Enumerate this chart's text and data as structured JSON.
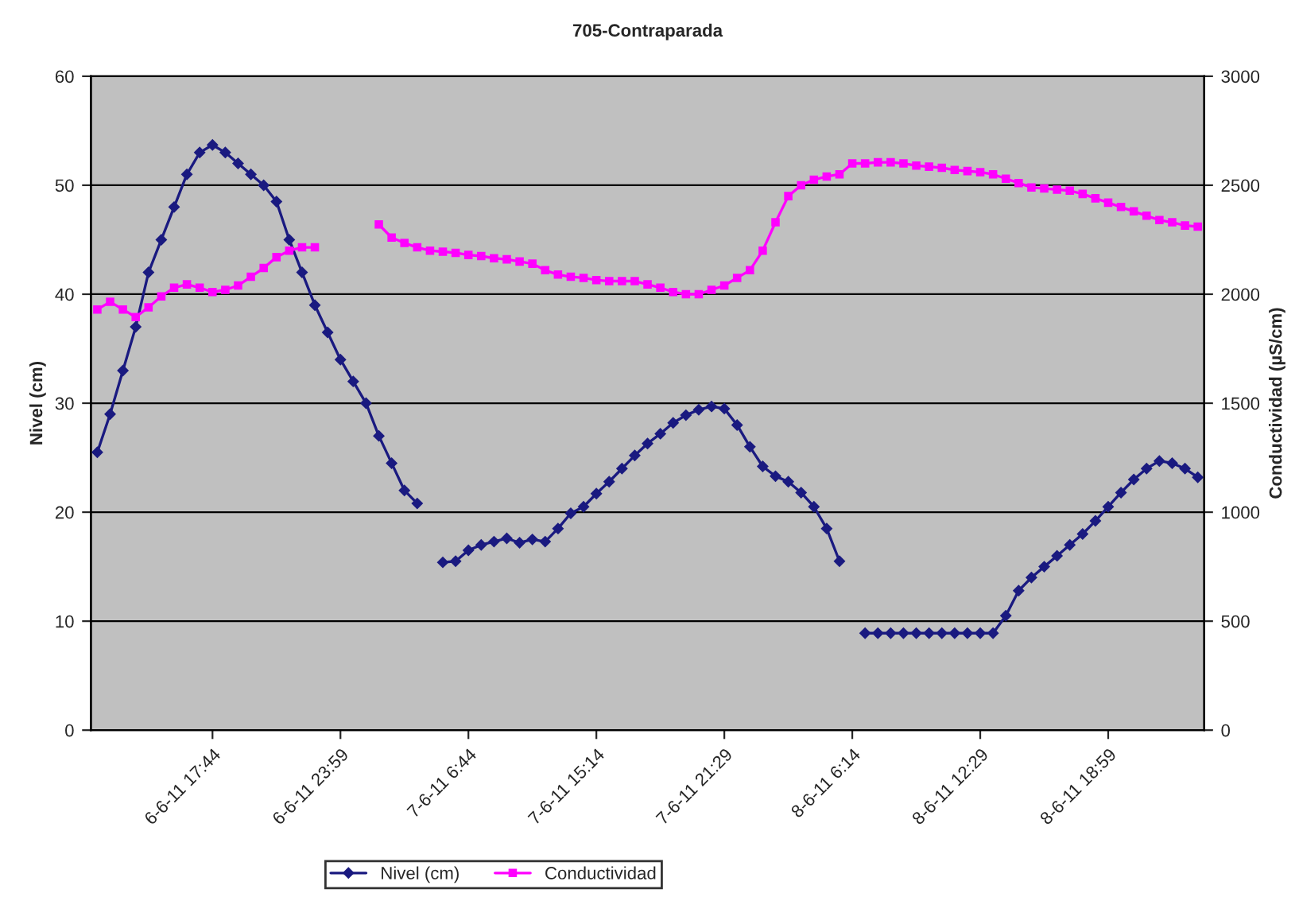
{
  "chart_data": {
    "type": "line",
    "title": "705-Contraparada",
    "ylabel": "Nivel (cm)",
    "y2label": "Conductividad (µS/cm)",
    "categories": [
      null,
      null,
      null,
      null,
      null,
      null,
      null,
      null,
      null,
      "6-6-11 17:44",
      null,
      null,
      null,
      null,
      null,
      null,
      null,
      null,
      null,
      "6-6-11 23:59",
      null,
      null,
      null,
      null,
      null,
      null,
      null,
      null,
      null,
      "7-6-11 6:44",
      null,
      null,
      null,
      null,
      null,
      null,
      null,
      null,
      null,
      "7-6-11 15:14",
      null,
      null,
      null,
      null,
      null,
      null,
      null,
      null,
      null,
      "7-6-11 21:29",
      null,
      null,
      null,
      null,
      null,
      null,
      null,
      null,
      null,
      "8-6-11 6:14",
      null,
      null,
      null,
      null,
      null,
      null,
      null,
      null,
      null,
      "8-6-11 12:29",
      null,
      null,
      null,
      null,
      null,
      null,
      null,
      null,
      null,
      "8-6-11 18:59",
      null,
      null,
      null,
      null,
      null,
      null,
      null
    ],
    "series": [
      {
        "name": "Nivel (cm)",
        "color": "#1a1a80",
        "marker": "diamond",
        "values": [
          25.5,
          29,
          33,
          37,
          42,
          45,
          48,
          51,
          53,
          53.7,
          53,
          52,
          51,
          50,
          48.5,
          45,
          42,
          39,
          36.5,
          34,
          32,
          30,
          27,
          24.5,
          22,
          20.8,
          null,
          15.4,
          15.5,
          16.5,
          17,
          17.3,
          17.6,
          17.2,
          17.5,
          17.3,
          18.5,
          19.9,
          20.5,
          21.7,
          22.8,
          24,
          25.2,
          26.3,
          27.2,
          28.2,
          28.9,
          29.4,
          29.7,
          29.5,
          28,
          26,
          24.2,
          23.3,
          22.8,
          21.8,
          20.5,
          18.5,
          15.5,
          null,
          8.9,
          8.9,
          8.9,
          8.9,
          8.9,
          8.9,
          8.9,
          8.9,
          8.9,
          8.9,
          8.9,
          10.5,
          12.8,
          14,
          15,
          16,
          17,
          18,
          19.2,
          20.5,
          21.8,
          23,
          24,
          24.7,
          24.5,
          24,
          23.2
        ]
      },
      {
        "name": "Conductividad",
        "color": "#ff00ff",
        "marker": "square",
        "axis": "y2",
        "values": [
          1930,
          1965,
          1930,
          1895,
          1940,
          1990,
          2030,
          2045,
          2030,
          2010,
          2020,
          2040,
          2080,
          2120,
          2170,
          2200,
          2215,
          2215,
          null,
          null,
          null,
          null,
          2320,
          2260,
          2235,
          2215,
          2200,
          2195,
          2190,
          2180,
          2175,
          2165,
          2160,
          2150,
          2140,
          2110,
          2090,
          2080,
          2075,
          2065,
          2060,
          2060,
          2060,
          2045,
          2030,
          2010,
          2000,
          2000,
          2020,
          2040,
          2075,
          2110,
          2200,
          2330,
          2450,
          2500,
          2525,
          2540,
          2550,
          2600,
          2600,
          2605,
          2605,
          2600,
          2590,
          2585,
          2580,
          2570,
          2565,
          2560,
          2550,
          2530,
          2510,
          2490,
          2485,
          2480,
          2475,
          2460,
          2440,
          2420,
          2400,
          2380,
          2360,
          2340,
          2330,
          2315,
          2310
        ]
      }
    ],
    "ylim": [
      0,
      60
    ],
    "yticks": [
      0,
      10,
      20,
      30,
      40,
      50,
      60
    ],
    "y2lim": [
      0,
      3000
    ],
    "y2ticks": [
      0,
      500,
      1000,
      1500,
      2000,
      2500,
      3000
    ],
    "grid": "y",
    "legend": "bottom"
  }
}
